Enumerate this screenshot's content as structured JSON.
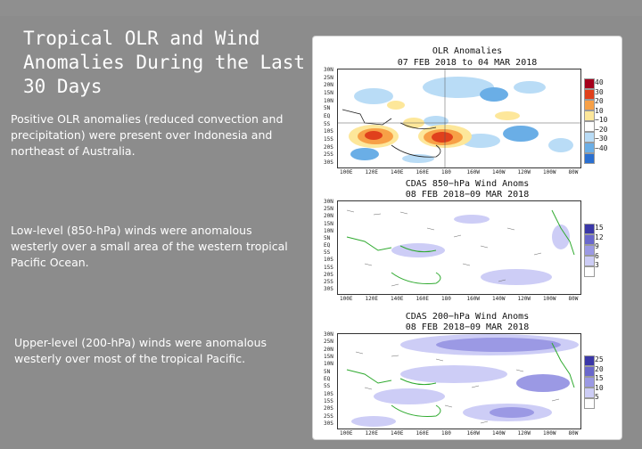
{
  "slide": {
    "title": "Tropical OLR and Wind Anomalies During the Last 30 Days",
    "paragraphs": [
      "Positive OLR anomalies (reduced convection and precipitation) were present over Indonesia and northeast of Australia.",
      "Low-level (850-hPa) winds were anomalous westerly over a small area of the western tropical Pacific Ocean.",
      "Upper-level (200-hPa) winds were anomalous westerly over most of the tropical Pacific."
    ]
  },
  "figure": {
    "latitudes": [
      "30N",
      "25N",
      "20N",
      "15N",
      "10N",
      "5N",
      "EQ",
      "5S",
      "10S",
      "15S",
      "20S",
      "25S",
      "30S"
    ],
    "longitudes": [
      "100E",
      "120E",
      "140E",
      "160E",
      "180",
      "160W",
      "140W",
      "120W",
      "100W",
      "80W"
    ],
    "panels": [
      {
        "title_line1": "OLR Anomalies",
        "title_line2": "07 FEB 2018 to 04 MAR 2018",
        "colorbar": [
          {
            "label": "40",
            "color": "#a5001c"
          },
          {
            "label": "30",
            "color": "#e0401c"
          },
          {
            "label": "20",
            "color": "#f7a046"
          },
          {
            "label": "10",
            "color": "#fde79a"
          },
          {
            "label": "−10",
            "color": "#ffffff"
          },
          {
            "label": "−20",
            "color": "#b9dcf6"
          },
          {
            "label": "−30",
            "color": "#6aaee6"
          },
          {
            "label": "−40",
            "color": "#2a6fd0"
          }
        ]
      },
      {
        "title_line1": "CDAS 850−hPa Wind Anoms",
        "title_line2": "08 FEB 2018−09 MAR 2018",
        "colorbar": [
          {
            "label": "15",
            "color": "#3a37a8"
          },
          {
            "label": "12",
            "color": "#6a68cc"
          },
          {
            "label": "9",
            "color": "#9b99e4"
          },
          {
            "label": "6",
            "color": "#cdcdf6"
          },
          {
            "label": "3",
            "color": "#ffffff"
          }
        ]
      },
      {
        "title_line1": "CDAS 200−hPa Wind Anoms",
        "title_line2": "08 FEB 2018−09 MAR 2018",
        "colorbar": [
          {
            "label": "25",
            "color": "#3a37a8"
          },
          {
            "label": "20",
            "color": "#6a68cc"
          },
          {
            "label": "15",
            "color": "#9b99e4"
          },
          {
            "label": "10",
            "color": "#cdcdf6"
          },
          {
            "label": "5",
            "color": "#ffffff"
          }
        ]
      }
    ]
  }
}
